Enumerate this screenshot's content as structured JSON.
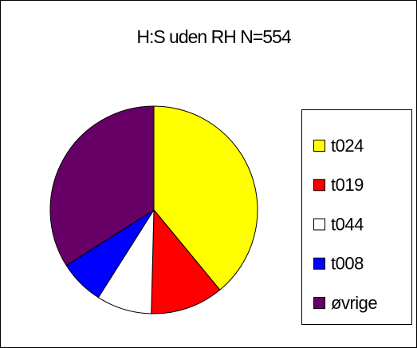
{
  "chart_data": {
    "type": "pie",
    "title": "H:S uden RH N=554",
    "categories": [
      "t024",
      "t019",
      "t044",
      "t008",
      "øvrige"
    ],
    "values": [
      39,
      11.4,
      8.6,
      7,
      34
    ],
    "colors": [
      "#ffff00",
      "#ff0000",
      "#ffffff",
      "#0000ff",
      "#660066"
    ]
  }
}
